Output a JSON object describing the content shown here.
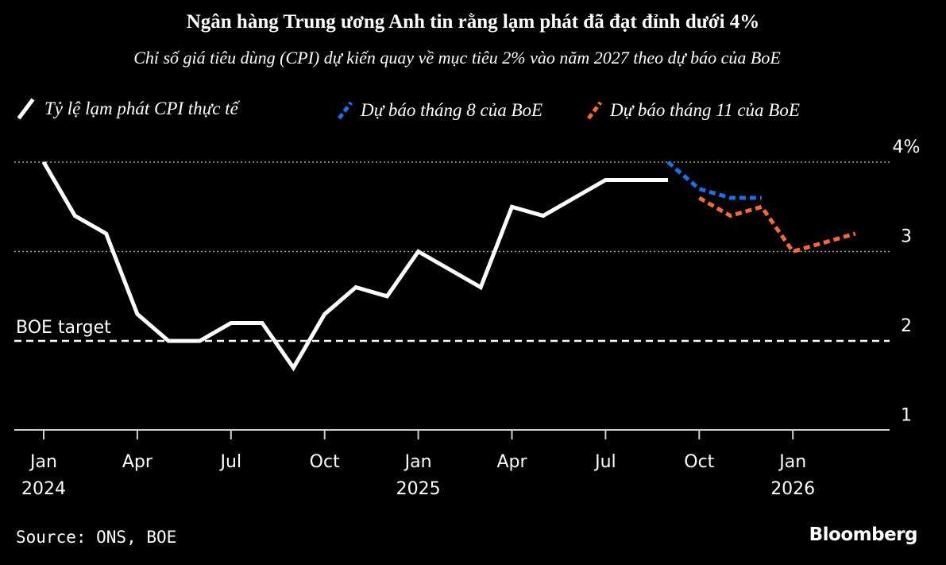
{
  "chart_data": {
    "type": "line",
    "title": "Ngân hàng Trung ương Anh tin rằng lạm phát đã đạt đỉnh dưới 4%",
    "subtitle": "Chỉ số giá tiêu dùng (CPI) dự kiến quay về mục tiêu 2% vào năm 2027 theo dự báo của BoE",
    "ylim": [
      0.8,
      4.3
    ],
    "yticks": [
      {
        "value": 4,
        "label": "4%"
      },
      {
        "value": 3,
        "label": "3"
      },
      {
        "value": 2,
        "label": "2"
      },
      {
        "value": 1,
        "label": "1"
      }
    ],
    "xticks": [
      {
        "month": "2024-01",
        "label": "Jan",
        "year": "2024"
      },
      {
        "month": "2024-04",
        "label": "Apr"
      },
      {
        "month": "2024-07",
        "label": "Jul"
      },
      {
        "month": "2024-10",
        "label": "Oct"
      },
      {
        "month": "2025-01",
        "label": "Jan",
        "year": "2025"
      },
      {
        "month": "2025-04",
        "label": "Apr"
      },
      {
        "month": "2025-07",
        "label": "Jul"
      },
      {
        "month": "2025-10",
        "label": "Oct"
      },
      {
        "month": "2026-01",
        "label": "Jan",
        "year": "2026"
      }
    ],
    "grid_values": [
      4,
      3
    ],
    "target": {
      "label": "BOE target",
      "value": 2.0
    },
    "series": [
      {
        "name": "Tỷ lệ lạm phát CPI thực tế",
        "color": "#ffffff",
        "style": "solid",
        "x": [
          "2024-01",
          "2024-02",
          "2024-03",
          "2024-04",
          "2024-05",
          "2024-06",
          "2024-07",
          "2024-08",
          "2024-09",
          "2024-10",
          "2024-11",
          "2024-12",
          "2025-01",
          "2025-02",
          "2025-03",
          "2025-04",
          "2025-05",
          "2025-06",
          "2025-07",
          "2025-08",
          "2025-09"
        ],
        "values": [
          4.0,
          3.4,
          3.2,
          2.3,
          2.0,
          2.0,
          2.2,
          2.2,
          1.7,
          2.3,
          2.6,
          2.5,
          3.0,
          2.8,
          2.6,
          3.5,
          3.4,
          3.6,
          3.8,
          3.8,
          3.8
        ]
      },
      {
        "name": "Dự báo tháng 8 của BoE",
        "color": "#1f6fe5",
        "style": "dotted",
        "x": [
          "2025-09",
          "2025-10",
          "2025-11",
          "2025-12"
        ],
        "values": [
          4.0,
          3.7,
          3.6,
          3.6
        ]
      },
      {
        "name": "Dự báo tháng 11 của BoE",
        "color": "#f26a3a",
        "style": "dotted",
        "x": [
          "2025-10",
          "2025-11",
          "2025-12",
          "2026-01",
          "2026-02",
          "2026-03"
        ],
        "values": [
          3.6,
          3.4,
          3.5,
          3.0,
          3.1,
          3.2
        ]
      }
    ]
  },
  "footer": {
    "source": "Source: ONS, BOE",
    "brand": "Bloomberg"
  }
}
